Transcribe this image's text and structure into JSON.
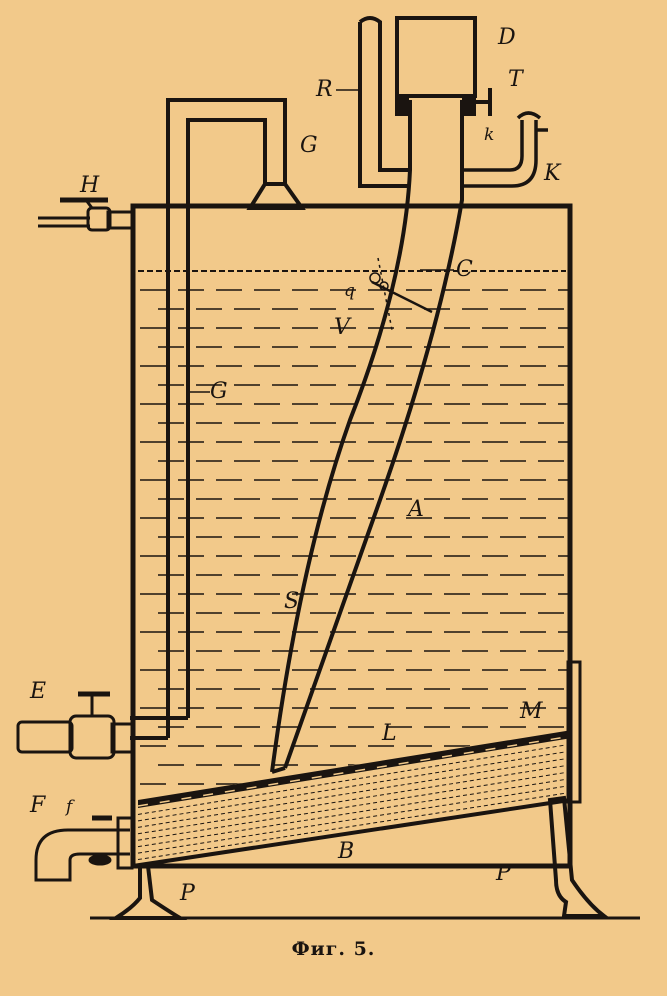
{
  "figure": {
    "caption": "Фиг. 5.",
    "colors": {
      "paper": "#f2c98a",
      "ink": "#1a1410"
    },
    "labels": {
      "A": "A",
      "B": "B",
      "C": "C",
      "D": "D",
      "E": "E",
      "F": "F",
      "f": "f",
      "G_top": "G",
      "G_mid": "G",
      "H": "H",
      "K": "K",
      "k": "k",
      "L": "L",
      "M": "M",
      "P_left": "P",
      "P_right": "P",
      "R": "R",
      "S": "S",
      "T": "T",
      "V": "V",
      "q": "q"
    }
  }
}
